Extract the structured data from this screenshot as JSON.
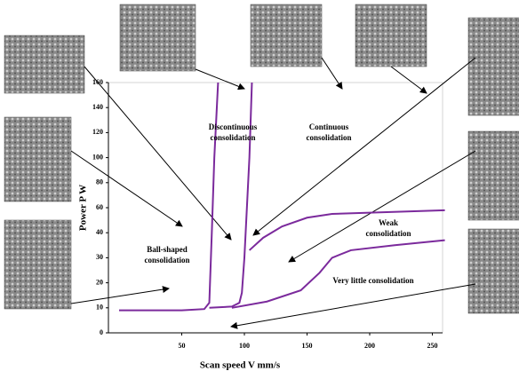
{
  "chart_data": {
    "type": "line",
    "x_label": "Scan speed V mm/s",
    "y_label": "Power P W",
    "xlim": [
      0,
      260
    ],
    "xticks": [
      50,
      100,
      150,
      200,
      250
    ],
    "ylim": [
      0,
      160
    ],
    "yticks": [
      0,
      10,
      20,
      30,
      40,
      60,
      80,
      100,
      120,
      140,
      160
    ],
    "series": [
      {
        "color": "#7b2a9c",
        "x": [
          0,
          50,
          68,
          72,
          74,
          76,
          79
        ],
        "values": [
          9,
          9,
          9.5,
          12,
          40,
          100,
          160
        ]
      },
      {
        "color": "#7b2a9c",
        "x": [
          72,
          90,
          96,
          98,
          100,
          102,
          104,
          106
        ],
        "values": [
          10,
          10.5,
          12,
          16,
          30,
          60,
          100,
          160
        ]
      },
      {
        "color": "#7b2a9c",
        "x": [
          104,
          115,
          130,
          150,
          170,
          200,
          260
        ],
        "values": [
          33,
          38,
          45,
          52,
          55,
          56,
          58
        ]
      },
      {
        "color": "#7b2a9c",
        "x": [
          90,
          118,
          145,
          160,
          170,
          185,
          220,
          260
        ],
        "values": [
          10,
          12.5,
          17,
          24,
          30,
          33,
          35,
          37
        ]
      }
    ],
    "annotations": [
      "Discontinuous consolidation",
      "Continuous consolidation",
      "Ball-shaped consolidation",
      "Weak consolidation",
      "Very little consolidation"
    ]
  }
}
